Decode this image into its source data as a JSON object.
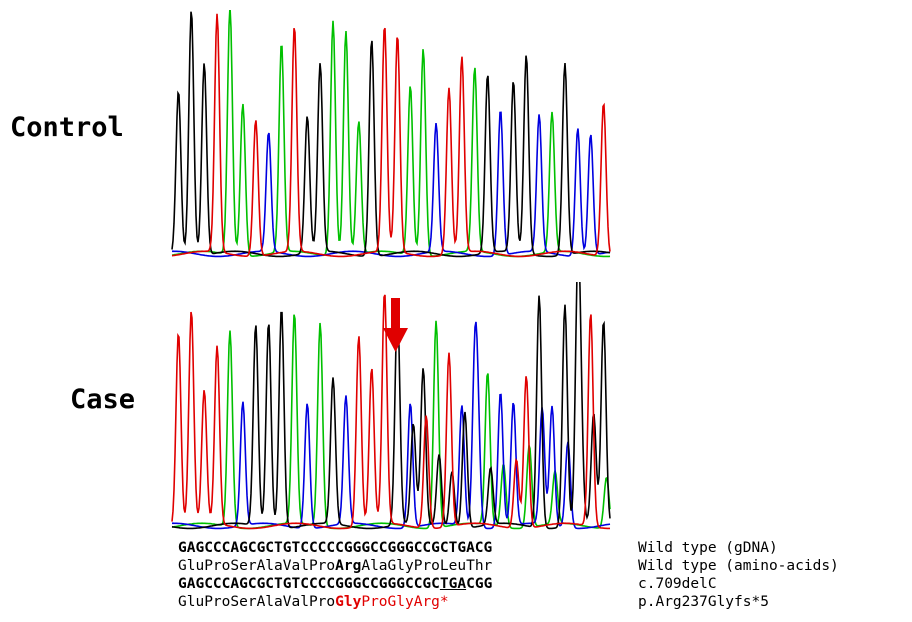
{
  "labels": {
    "control": "Control",
    "case": "Case"
  },
  "sequences": {
    "wild_gdna": "GAGCCCAGCGCTGTCCCCCGGGCCGGGCCGCTGACG",
    "wild_aa": {
      "before": "GluProSerAlaValPro",
      "highlight": "Arg",
      "after": "AlaGlyProLeuThr"
    },
    "mutant_gdna": {
      "before": "GAGCCCAGCGCTGTCCCCGGGCCGGGCCGC",
      "stop": "TGA",
      "after": "CGG"
    },
    "mutant_aa": {
      "before": "GluProSerAlaValPro",
      "highlight": "Gly",
      "after": "ProGlyArg*"
    }
  },
  "annotations": [
    "Wild type (gDNA)",
    "Wild type (amino-acids)",
    "c.709delC",
    "p.Arg237Glyfs*5"
  ]
}
